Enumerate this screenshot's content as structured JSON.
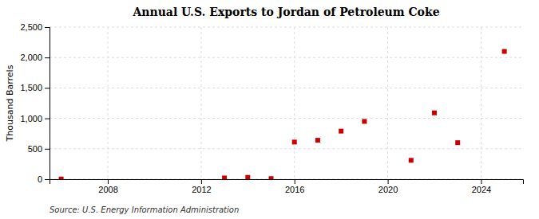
{
  "chart_data": {
    "type": "scatter",
    "title": "Annual U.S. Exports to Jordan of Petroleum Coke",
    "ylabel": "Thousand Barrels",
    "annotation": "Source: U.S. Energy Information Administration",
    "x": [
      2006,
      2013,
      2014,
      2015,
      2016,
      2017,
      2018,
      2019,
      2021,
      2022,
      2023,
      2025
    ],
    "values": [
      3,
      20,
      30,
      10,
      610,
      640,
      790,
      950,
      310,
      1090,
      600,
      2100
    ],
    "color": "#cc0000",
    "marker": "square",
    "xlim": [
      2005.5,
      2025.8
    ],
    "ylim": [
      0,
      2500
    ],
    "xticks": [
      2008,
      2012,
      2016,
      2020,
      2024
    ],
    "yticks": [
      0,
      500,
      {
        "value": 1000,
        "label": "1,000"
      },
      {
        "value": 1500,
        "label": "1,500"
      },
      {
        "value": 2000,
        "label": "2,000"
      },
      {
        "value": 2500,
        "label": "2,500"
      }
    ],
    "grid": true
  }
}
